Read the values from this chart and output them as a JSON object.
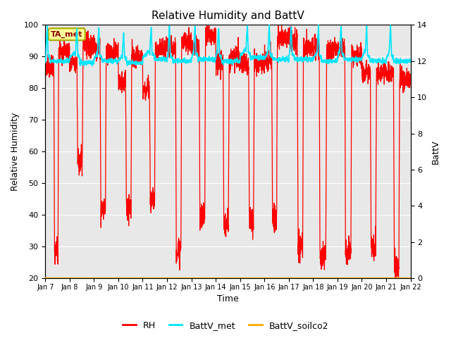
{
  "title": "Relative Humidity and BattV",
  "ylabel_left": "Relative Humidity",
  "ylabel_right": "BattV",
  "xlabel": "Time",
  "ylim_left": [
    20,
    100
  ],
  "ylim_right": [
    0,
    14
  ],
  "fig_bg_color": "#ffffff",
  "plot_bg_color": "#e8e8e8",
  "rh_color": "#ff0000",
  "battv_met_color": "#00e5ff",
  "battv_soilco2_color": "#ffaa00",
  "annotation_text": "TA_met",
  "annotation_bg": "#ffff99",
  "annotation_border": "#aaaa00",
  "annotation_text_color": "#8b0000",
  "x_tick_labels": [
    "Jan 7",
    "Jan 8",
    "Jan 9",
    "Jan 10",
    "Jan 11",
    "Jan 12",
    "Jan 13",
    "Jan 14",
    "Jan 15",
    "Jan 16",
    "Jan 17",
    "Jan 18",
    "Jan 19",
    "Jan 20",
    "Jan 21",
    "Jan 22"
  ],
  "legend_labels": [
    "RH",
    "BattV_met",
    "BattV_soilco2"
  ],
  "n_days": 15,
  "seed": 7
}
